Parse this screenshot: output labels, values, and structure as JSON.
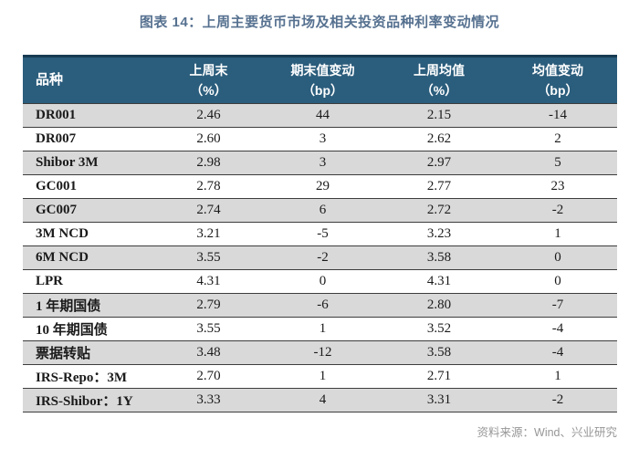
{
  "title": "图表 14：上周主要货币市场及相关投资品种利率变动情况",
  "table": {
    "columns": [
      {
        "label": "品种",
        "unit": ""
      },
      {
        "label": "上周末",
        "unit": "（%）"
      },
      {
        "label": "期末值变动",
        "unit": "（bp）"
      },
      {
        "label": "上周均值",
        "unit": "（%）"
      },
      {
        "label": "均值变动",
        "unit": "（bp）"
      }
    ],
    "rows": [
      {
        "name": "DR001",
        "values": [
          "2.46",
          "44",
          "2.15",
          "-14"
        ]
      },
      {
        "name": "DR007",
        "values": [
          "2.60",
          "3",
          "2.62",
          "2"
        ]
      },
      {
        "name": "Shibor 3M",
        "values": [
          "2.98",
          "3",
          "2.97",
          "5"
        ]
      },
      {
        "name": "GC001",
        "values": [
          "2.78",
          "29",
          "2.77",
          "23"
        ]
      },
      {
        "name": "GC007",
        "values": [
          "2.74",
          "6",
          "2.72",
          "-2"
        ]
      },
      {
        "name": "3M NCD",
        "values": [
          "3.21",
          "-5",
          "3.23",
          "1"
        ]
      },
      {
        "name": "6M NCD",
        "values": [
          "3.55",
          "-2",
          "3.58",
          "0"
        ]
      },
      {
        "name": "LPR",
        "values": [
          "4.31",
          "0",
          "4.31",
          "0"
        ]
      },
      {
        "name": "1 年期国债",
        "values": [
          "2.79",
          "-6",
          "2.80",
          "-7"
        ]
      },
      {
        "name": "10 年期国债",
        "values": [
          "3.55",
          "1",
          "3.52",
          "-4"
        ]
      },
      {
        "name": "票据转贴",
        "values": [
          "3.48",
          "-12",
          "3.58",
          "-4"
        ]
      },
      {
        "name": "IRS-Repo：3M",
        "values": [
          "2.70",
          "1",
          "2.71",
          "1"
        ]
      },
      {
        "name": "IRS-Shibor：1Y",
        "values": [
          "3.33",
          "4",
          "3.31",
          "-2"
        ]
      }
    ]
  },
  "footer": {
    "source": "资料来源：Wind、兴业研究"
  },
  "colors": {
    "header_bg": "#2b5d7c",
    "header_top": "#173b52",
    "header_text": "#ffffff",
    "row_alt": "#d9d9d9",
    "row_white": "#ffffff",
    "title": "#567190",
    "source_text": "#979797",
    "border": "#3d3d3d",
    "cell_text": "#1a1a1a"
  }
}
